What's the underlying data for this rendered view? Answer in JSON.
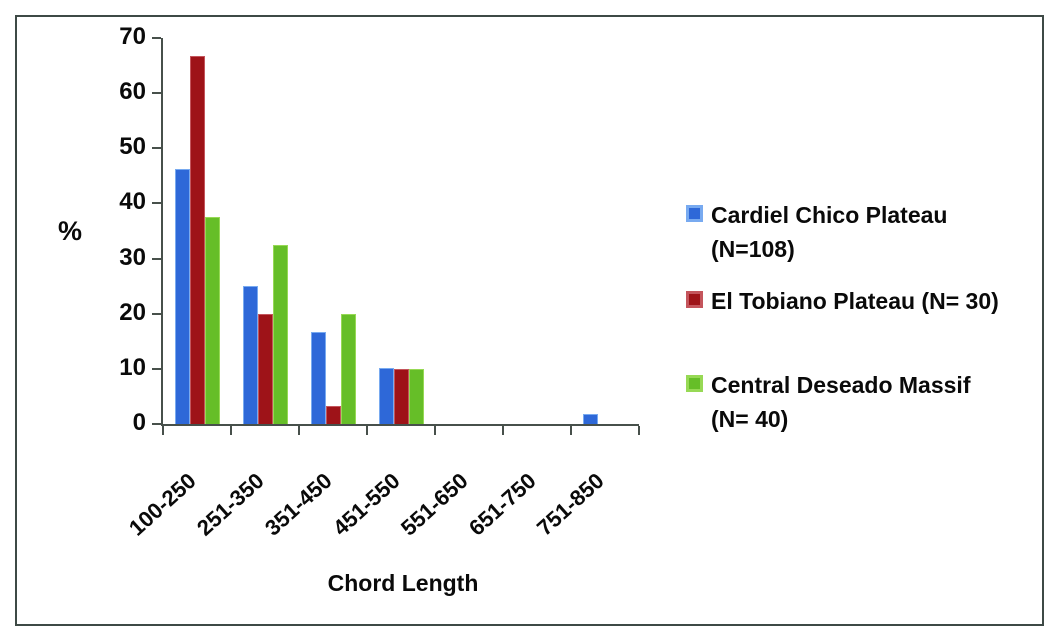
{
  "chart_data": {
    "type": "bar",
    "title": "",
    "xlabel": "Chord Length",
    "ylabel": "%",
    "categories": [
      "100-250",
      "251-350",
      "351-450",
      "451-550",
      "551-650",
      "651-750",
      "751-850"
    ],
    "series": [
      {
        "name": "Cardiel Chico Plateau (N=108)",
        "color": "#2e68d8",
        "border_color": "#78aaf0",
        "values": [
          46.3,
          25.0,
          16.7,
          10.2,
          0,
          0,
          1.9
        ]
      },
      {
        "name": "El Tobiano Plateau (N= 30)",
        "color": "#9e1318",
        "border_color": "#c4555c",
        "values": [
          66.7,
          20.0,
          3.3,
          10.0,
          0,
          0,
          0
        ]
      },
      {
        "name": "Central Deseado Massif (N= 40)",
        "color": "#66be28",
        "border_color": "#97d955",
        "values": [
          37.5,
          32.5,
          20.0,
          10.0,
          0,
          0,
          0
        ]
      }
    ],
    "ylim": [
      0,
      70
    ],
    "yticks": [
      0,
      10,
      20,
      30,
      40,
      50,
      60,
      70
    ],
    "grid": false,
    "legend_position": "right"
  },
  "legend": {
    "items": [
      {
        "lines": [
          "Cardiel Chico Plateau",
          "(N=108)"
        ]
      },
      {
        "lines": [
          "El Tobiano Plateau (N= 30)"
        ]
      },
      {
        "lines": [
          "Central Deseado Massif",
          "(N= 40)"
        ]
      }
    ]
  },
  "colors": {
    "frame_border": "#3e4a46",
    "axis": "#47504b",
    "text": "#0a0a0a"
  }
}
